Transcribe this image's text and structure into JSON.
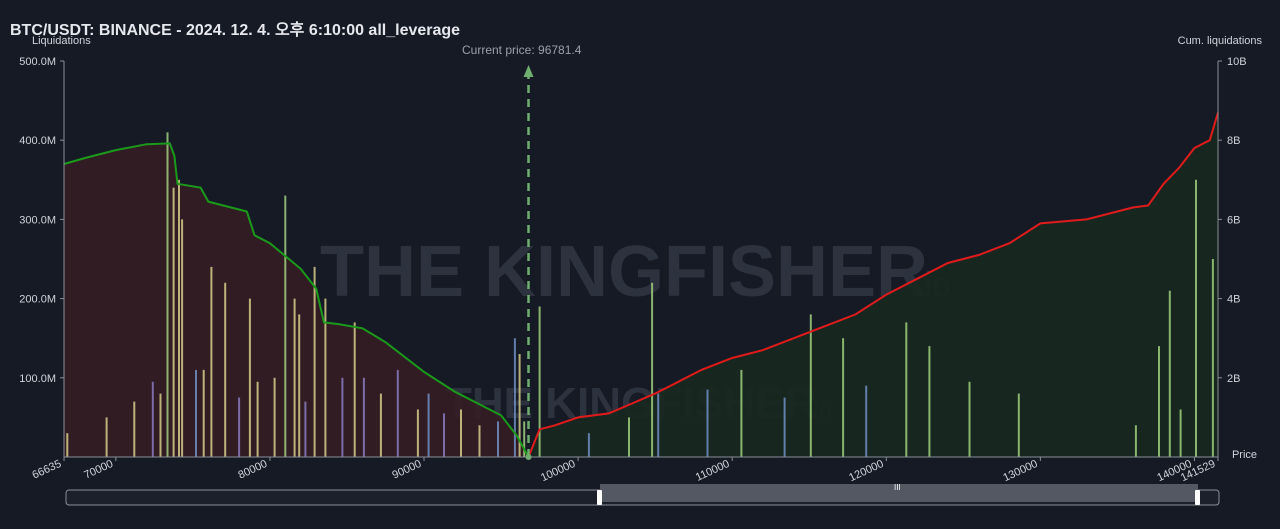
{
  "title": "BTC/USDT: BINANCE - 2024. 12. 4. 오후 6:10:00 all_leverage",
  "current_price_label": "Current price: 96781.4",
  "watermark": "THE KINGFISHER",
  "watermark_suffix": ".io",
  "colors": {
    "background": "#161a25",
    "short_cum_line": "#1a9a1a",
    "long_cum_line": "#e01b1b",
    "short_area": "#341d24",
    "long_area": "#17281f",
    "bar_yellow": "#d6cc8a",
    "bar_green": "#9fcf7c",
    "bar_blue": "#6f8fc4",
    "bar_purple": "#8a7ac0",
    "current_price_marker": "#6fae6f"
  },
  "chart_data": {
    "type": "bar",
    "ylabel_left": "Liquidations",
    "ylabel_right": "Cum. liquidations",
    "xlabel": "Price",
    "xlim": [
      66635,
      141529
    ],
    "ylim_left": [
      0,
      500000000
    ],
    "ylim_right": [
      0,
      10000000000
    ],
    "x_tick_labels": [
      "66635",
      "70000",
      "80000",
      "90000",
      "100000",
      "110000",
      "120000",
      "130000",
      "140000",
      "141529"
    ],
    "y_left_tick_labels": [
      "500.0M",
      "400.0M",
      "300.0M",
      "200.0M",
      "100.0M"
    ],
    "y_right_tick_labels": [
      "10B",
      "8B",
      "6B",
      "4B",
      "2B"
    ],
    "current_price": 96781.4,
    "series": [
      {
        "kind": "cumulative-left-of-price",
        "x": [
          66635,
          68000,
          70000,
          72000,
          73500,
          73800,
          74000,
          75500,
          76000,
          76500,
          78500,
          79000,
          80000,
          82000,
          83000,
          83500,
          84500,
          86000,
          87500,
          89000,
          90000,
          91000,
          92000,
          94000,
          95000,
          96000,
          96781
        ],
        "y": [
          7400000000,
          7550000000,
          7750000000,
          7900000000,
          7920000000,
          7600000000,
          6900000000,
          6800000000,
          6450000000,
          6400000000,
          6200000000,
          5600000000,
          5400000000,
          4750000000,
          4250000000,
          3400000000,
          3350000000,
          3250000000,
          2900000000,
          2450000000,
          2150000000,
          1900000000,
          1650000000,
          1250000000,
          1050000000,
          550000000,
          0
        ]
      },
      {
        "kind": "cumulative-right-of-price",
        "x": [
          96781,
          97500,
          98500,
          100000,
          102000,
          103500,
          105000,
          106500,
          108000,
          110000,
          112000,
          114000,
          116000,
          118000,
          120000,
          122000,
          124000,
          126000,
          128000,
          130000,
          133000,
          136000,
          137000,
          138000,
          139000,
          140000,
          141000,
          141529
        ],
        "y": [
          0,
          700000000,
          800000000,
          1000000000,
          1100000000,
          1350000000,
          1600000000,
          1900000000,
          2200000000,
          2500000000,
          2700000000,
          3000000000,
          3300000000,
          3600000000,
          4100000000,
          4500000000,
          4900000000,
          5100000000,
          5400000000,
          5900000000,
          6000000000,
          6300000000,
          6350000000,
          6900000000,
          7300000000,
          7800000000,
          8000000000,
          8700000000
        ]
      }
    ],
    "bars": {
      "x": [
        66850,
        69400,
        71200,
        72400,
        72900,
        73350,
        73750,
        74100,
        74300,
        75200,
        75700,
        76200,
        77100,
        78000,
        78700,
        79200,
        80300,
        81000,
        81600,
        81900,
        82300,
        82900,
        83600,
        84700,
        85500,
        86100,
        87200,
        88300,
        89600,
        90300,
        91300,
        92400,
        93600,
        94800,
        95900,
        96200,
        96500,
        97500,
        100700,
        103300,
        104800,
        105200,
        108400,
        110600,
        113400,
        115100,
        117200,
        118700,
        121300,
        122800,
        125400,
        128600,
        136200,
        137700,
        138400,
        139100,
        140100,
        141200
      ],
      "values": [
        30000000,
        50000000,
        70000000,
        95000000,
        80000000,
        410000000,
        340000000,
        350000000,
        300000000,
        110000000,
        110000000,
        240000000,
        220000000,
        75000000,
        200000000,
        95000000,
        100000000,
        330000000,
        200000000,
        180000000,
        70000000,
        240000000,
        200000000,
        100000000,
        170000000,
        100000000,
        80000000,
        110000000,
        60000000,
        80000000,
        55000000,
        60000000,
        40000000,
        45000000,
        150000000,
        130000000,
        45000000,
        190000000,
        30000000,
        50000000,
        220000000,
        80000000,
        85000000,
        110000000,
        75000000,
        180000000,
        150000000,
        90000000,
        170000000,
        140000000,
        95000000,
        80000000,
        40000000,
        140000000,
        210000000,
        60000000,
        350000000,
        250000000
      ],
      "colors": [
        "yellow",
        "yellow",
        "yellow",
        "purple",
        "yellow",
        "green",
        "yellow",
        "yellow",
        "yellow",
        "blue",
        "yellow",
        "yellow",
        "yellow",
        "purple",
        "yellow",
        "yellow",
        "yellow",
        "green",
        "yellow",
        "yellow",
        "purple",
        "yellow",
        "yellow",
        "purple",
        "yellow",
        "purple",
        "yellow",
        "purple",
        "yellow",
        "blue",
        "purple",
        "yellow",
        "yellow",
        "blue",
        "blue",
        "yellow",
        "green",
        "green",
        "blue",
        "green",
        "green",
        "blue",
        "blue",
        "green",
        "blue",
        "green",
        "green",
        "blue",
        "green",
        "green",
        "green",
        "green",
        "green",
        "green",
        "green",
        "green",
        "green",
        "green"
      ]
    }
  }
}
